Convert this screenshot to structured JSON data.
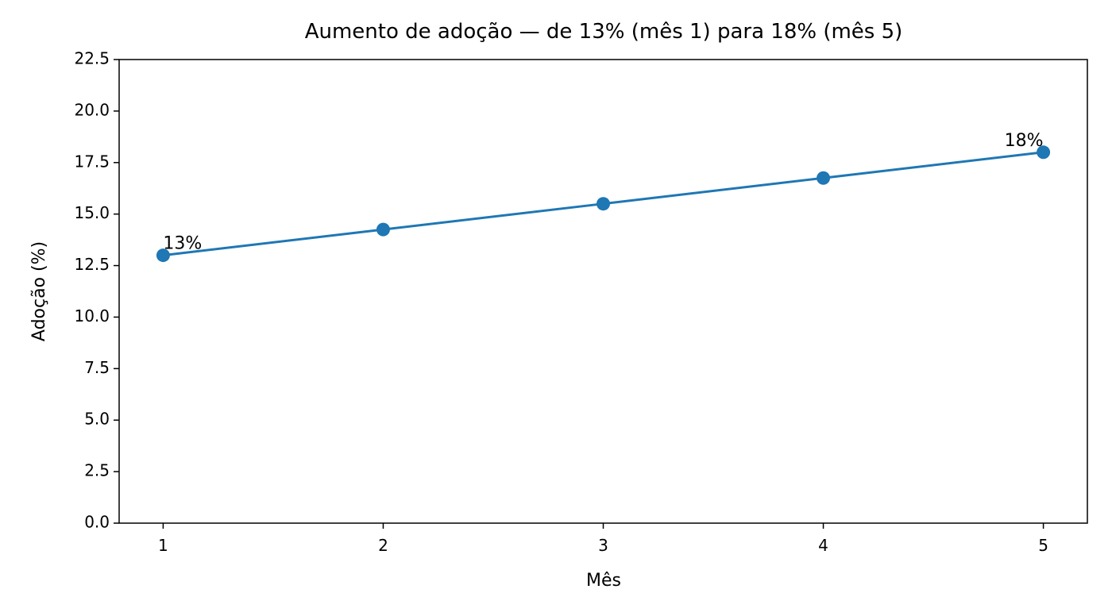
{
  "chart_data": {
    "type": "line",
    "title": "Aumento de adoção — de 13% (mês 1) para 18% (mês 5)",
    "x_label": "Mês",
    "y_label": "Adoção (%)",
    "x": [
      1,
      2,
      3,
      4,
      5
    ],
    "series": [
      {
        "name": "Adoção",
        "color": "#1f77b4",
        "values": [
          13,
          14.25,
          15.5,
          16.75,
          18
        ],
        "value_labels": [
          "13%",
          null,
          null,
          null,
          "18%"
        ]
      }
    ],
    "xlim": [
      0.8,
      5.2
    ],
    "xticks": [
      1,
      2,
      3,
      4,
      5
    ],
    "ylim": [
      0,
      22.5
    ],
    "yticks": [
      {
        "value": 0,
        "label": "0.0"
      },
      2.5,
      {
        "value": 5,
        "label": "5.0"
      },
      7.5,
      {
        "value": 10,
        "label": "10.0"
      },
      12.5,
      {
        "value": 15,
        "label": "15.0"
      },
      17.5,
      {
        "value": 20,
        "label": "20.0"
      },
      22.5
    ],
    "grid": false
  }
}
